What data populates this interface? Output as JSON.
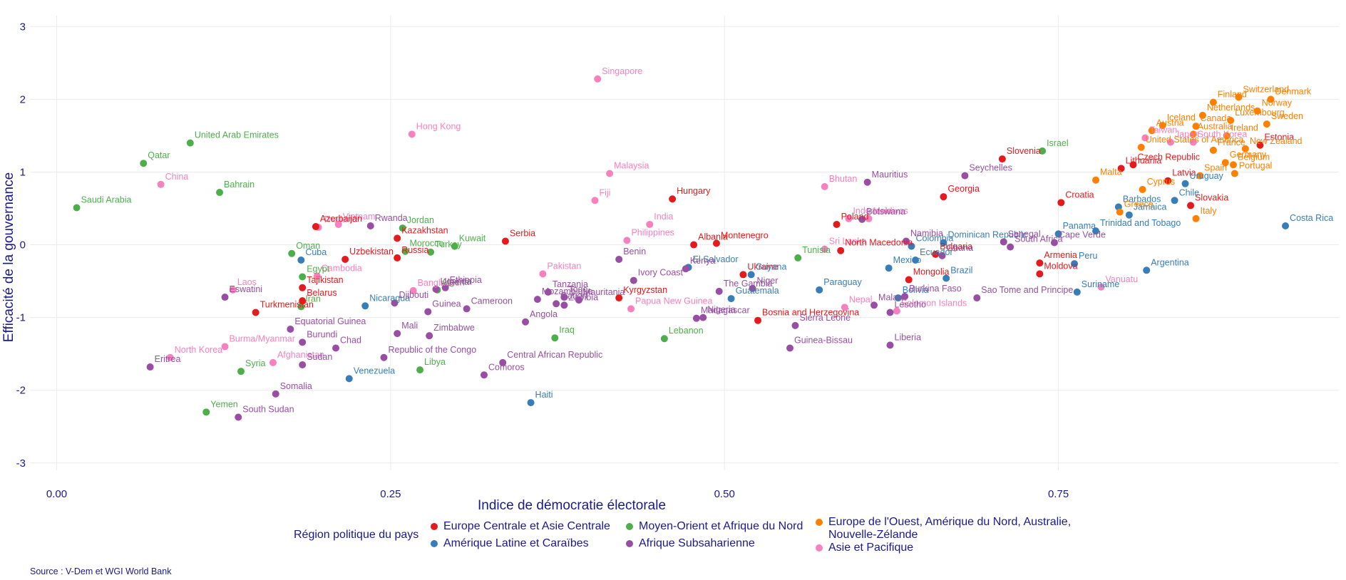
{
  "caption": "Source : V-Dem et WGI World Bank",
  "legend": {
    "title": "Région politique du pays",
    "items": [
      {
        "key": "ECA",
        "label": "Europe Centrale et Asie Centrale",
        "color": "#e41a1c"
      },
      {
        "key": "LAC",
        "label": "Amérique Latine et Caraïbes",
        "color": "#377eb8"
      },
      {
        "key": "MENA",
        "label": "Moyen-Orient et Afrique du Nord",
        "color": "#4daf4a"
      },
      {
        "key": "SSA",
        "label": "Afrique Subsaharienne",
        "color": "#984ea3"
      },
      {
        "key": "WE",
        "label": "Europe de l'Ouest, Amérique du Nord, Australie, Nouvelle-Zélande",
        "color": "#ff7f00"
      },
      {
        "key": "AP",
        "label": "Asie et Pacifique",
        "color": "#f781bf"
      }
    ]
  },
  "chart_data": {
    "type": "scatter",
    "xlabel": "Indice de démocratie électorale",
    "ylabel": "Efficacité de la gouvernance",
    "xlim": [
      -0.02,
      0.96
    ],
    "ylim": [
      -3.1,
      3.15
    ],
    "xticks": [
      "0.00",
      "0.25",
      "0.50",
      "0.75"
    ],
    "xtick_values": [
      0,
      0.25,
      0.5,
      0.75
    ],
    "yticks": [
      "-3",
      "-2",
      "-1",
      "0",
      "1",
      "2",
      "3"
    ],
    "ytick_values": [
      -3,
      -2,
      -1,
      0,
      1,
      2,
      3
    ],
    "grid": true,
    "legend_position": "bottom",
    "points": [
      {
        "name": "Singapore",
        "x": 0.405,
        "y": 2.28,
        "r": "AP"
      },
      {
        "name": "Hong Kong",
        "x": 0.266,
        "y": 1.52,
        "r": "AP"
      },
      {
        "name": "China",
        "x": 0.078,
        "y": 0.83,
        "r": "AP"
      },
      {
        "name": "Malaysia",
        "x": 0.414,
        "y": 0.98,
        "r": "AP"
      },
      {
        "name": "Fiji",
        "x": 0.403,
        "y": 0.61,
        "r": "AP"
      },
      {
        "name": "India",
        "x": 0.444,
        "y": 0.28,
        "r": "AP"
      },
      {
        "name": "Vietnam",
        "x": 0.211,
        "y": 0.28,
        "r": "AP"
      },
      {
        "name": "Thailand",
        "x": 0.196,
        "y": 0.24,
        "r": "AP"
      },
      {
        "name": "Philippines",
        "x": 0.427,
        "y": 0.06,
        "r": "AP"
      },
      {
        "name": "Cambodia",
        "x": 0.195,
        "y": -0.43,
        "r": "AP"
      },
      {
        "name": "Laos",
        "x": 0.132,
        "y": -0.62,
        "r": "AP"
      },
      {
        "name": "Pakistan",
        "x": 0.364,
        "y": -0.4,
        "r": "AP"
      },
      {
        "name": "Bangladesh",
        "x": 0.267,
        "y": -0.63,
        "r": "AP"
      },
      {
        "name": "Papua New Guinea",
        "x": 0.43,
        "y": -0.88,
        "r": "AP"
      },
      {
        "name": "Burma/Myanmar",
        "x": 0.126,
        "y": -1.4,
        "r": "AP"
      },
      {
        "name": "Afghanistan",
        "x": 0.162,
        "y": -1.62,
        "r": "AP"
      },
      {
        "name": "North Korea",
        "x": 0.085,
        "y": -1.55,
        "r": "AP"
      },
      {
        "name": "Bhutan",
        "x": 0.575,
        "y": 0.8,
        "r": "AP"
      },
      {
        "name": "Indonesia",
        "x": 0.593,
        "y": 0.36,
        "r": "AP"
      },
      {
        "name": "Maldives",
        "x": 0.608,
        "y": 0.36,
        "r": "AP"
      },
      {
        "name": "Sri Lanka",
        "x": 0.575,
        "y": -0.06,
        "r": "AP"
      },
      {
        "name": "Nepal",
        "x": 0.59,
        "y": -0.86,
        "r": "AP"
      },
      {
        "name": "Solomon Islands",
        "x": 0.629,
        "y": -0.91,
        "r": "AP"
      },
      {
        "name": "Vanuatu",
        "x": 0.782,
        "y": -0.58,
        "r": "AP"
      },
      {
        "name": "Taiwan",
        "x": 0.815,
        "y": 1.47,
        "r": "AP"
      },
      {
        "name": "Japan",
        "x": 0.834,
        "y": 1.41,
        "r": "AP"
      },
      {
        "name": "South Korea",
        "x": 0.851,
        "y": 1.41,
        "r": "AP"
      },
      {
        "name": "United Arab Emirates",
        "x": 0.1,
        "y": 1.4,
        "r": "MENA"
      },
      {
        "name": "Qatar",
        "x": 0.065,
        "y": 1.12,
        "r": "MENA"
      },
      {
        "name": "Bahrain",
        "x": 0.122,
        "y": 0.72,
        "r": "MENA"
      },
      {
        "name": "Saudi Arabia",
        "x": 0.015,
        "y": 0.51,
        "r": "MENA"
      },
      {
        "name": "Jordan",
        "x": 0.259,
        "y": 0.23,
        "r": "MENA"
      },
      {
        "name": "Kuwait",
        "x": 0.298,
        "y": -0.02,
        "r": "MENA"
      },
      {
        "name": "Oman",
        "x": 0.176,
        "y": -0.12,
        "r": "MENA"
      },
      {
        "name": "Morocco",
        "x": 0.261,
        "y": -0.09,
        "r": "MENA"
      },
      {
        "name": "Turkey",
        "x": 0.28,
        "y": -0.1,
        "r": "MENA"
      },
      {
        "name": "Egypt",
        "x": 0.184,
        "y": -0.44,
        "r": "MENA"
      },
      {
        "name": "Algeria",
        "x": 0.285,
        "y": -0.62,
        "r": "MENA"
      },
      {
        "name": "Iran",
        "x": 0.183,
        "y": -0.85,
        "r": "MENA"
      },
      {
        "name": "Iraq",
        "x": 0.373,
        "y": -1.28,
        "r": "MENA"
      },
      {
        "name": "Libya",
        "x": 0.272,
        "y": -1.72,
        "r": "MENA"
      },
      {
        "name": "Syria",
        "x": 0.138,
        "y": -1.74,
        "r": "MENA"
      },
      {
        "name": "Yemen",
        "x": 0.112,
        "y": -2.3,
        "r": "MENA"
      },
      {
        "name": "Lebanon",
        "x": 0.455,
        "y": -1.29,
        "r": "MENA"
      },
      {
        "name": "Tunisia",
        "x": 0.555,
        "y": -0.18,
        "r": "MENA"
      },
      {
        "name": "Israel",
        "x": 0.738,
        "y": 1.29,
        "r": "MENA"
      },
      {
        "name": "Azerbaijan",
        "x": 0.194,
        "y": 0.25,
        "r": "ECA"
      },
      {
        "name": "Kazakhstan",
        "x": 0.255,
        "y": 0.09,
        "r": "ECA"
      },
      {
        "name": "Uzbekistan",
        "x": 0.216,
        "y": -0.2,
        "r": "ECA"
      },
      {
        "name": "Russia",
        "x": 0.255,
        "y": -0.18,
        "r": "ECA"
      },
      {
        "name": "Serbia",
        "x": 0.336,
        "y": 0.05,
        "r": "ECA"
      },
      {
        "name": "Tajikistan",
        "x": 0.184,
        "y": -0.59,
        "r": "ECA"
      },
      {
        "name": "Belarus",
        "x": 0.184,
        "y": -0.77,
        "r": "ECA"
      },
      {
        "name": "Turkmenistan",
        "x": 0.149,
        "y": -0.93,
        "r": "ECA"
      },
      {
        "name": "Hungary",
        "x": 0.461,
        "y": 0.63,
        "r": "ECA"
      },
      {
        "name": "Albania",
        "x": 0.477,
        "y": 0.0,
        "r": "ECA"
      },
      {
        "name": "Montenegro",
        "x": 0.494,
        "y": 0.02,
        "r": "ECA"
      },
      {
        "name": "Kyrgyzstan",
        "x": 0.421,
        "y": -0.73,
        "r": "ECA"
      },
      {
        "name": "Ukraine",
        "x": 0.514,
        "y": -0.41,
        "r": "ECA"
      },
      {
        "name": "Bosnia and Herzegovina",
        "x": 0.525,
        "y": -1.04,
        "r": "ECA"
      },
      {
        "name": "Poland",
        "x": 0.584,
        "y": 0.28,
        "r": "ECA"
      },
      {
        "name": "North Macedonia",
        "x": 0.587,
        "y": -0.08,
        "r": "ECA"
      },
      {
        "name": "Georgia",
        "x": 0.664,
        "y": 0.66,
        "r": "ECA"
      },
      {
        "name": "Slovenia",
        "x": 0.708,
        "y": 1.18,
        "r": "ECA"
      },
      {
        "name": "Bulgaria",
        "x": 0.658,
        "y": -0.13,
        "r": "ECA"
      },
      {
        "name": "Mongolia",
        "x": 0.638,
        "y": -0.48,
        "r": "ECA"
      },
      {
        "name": "Armenia",
        "x": 0.736,
        "y": -0.25,
        "r": "ECA"
      },
      {
        "name": "Moldova",
        "x": 0.736,
        "y": -0.4,
        "r": "ECA"
      },
      {
        "name": "Croatia",
        "x": 0.752,
        "y": 0.58,
        "r": "ECA"
      },
      {
        "name": "Lithuania",
        "x": 0.797,
        "y": 1.05,
        "r": "ECA"
      },
      {
        "name": "Czech Republic",
        "x": 0.806,
        "y": 1.1,
        "r": "ECA"
      },
      {
        "name": "Latvia",
        "x": 0.832,
        "y": 0.88,
        "r": "ECA"
      },
      {
        "name": "Estonia",
        "x": 0.901,
        "y": 1.37,
        "r": "ECA"
      },
      {
        "name": "Slovakia",
        "x": 0.849,
        "y": 0.54,
        "r": "ECA"
      },
      {
        "name": "Cuba",
        "x": 0.183,
        "y": -0.21,
        "r": "LAC"
      },
      {
        "name": "Nicaragua",
        "x": 0.231,
        "y": -0.84,
        "r": "LAC"
      },
      {
        "name": "Venezuela",
        "x": 0.219,
        "y": -1.84,
        "r": "LAC"
      },
      {
        "name": "Haiti",
        "x": 0.355,
        "y": -2.17,
        "r": "LAC"
      },
      {
        "name": "Mauritania",
        "x": 0.391,
        "y": -0.76,
        "r": "SSA"
      },
      {
        "name": "El Salvador",
        "x": 0.473,
        "y": -0.31,
        "r": "LAC"
      },
      {
        "name": "Guyana",
        "x": 0.52,
        "y": -0.41,
        "r": "LAC"
      },
      {
        "name": "Guatemala",
        "x": 0.505,
        "y": -0.74,
        "r": "LAC"
      },
      {
        "name": "Paraguay",
        "x": 0.571,
        "y": -0.62,
        "r": "LAC"
      },
      {
        "name": "Bolivia",
        "x": 0.63,
        "y": -0.73,
        "r": "LAC"
      },
      {
        "name": "Mexico",
        "x": 0.623,
        "y": -0.32,
        "r": "LAC"
      },
      {
        "name": "Colombia",
        "x": 0.64,
        "y": -0.02,
        "r": "LAC"
      },
      {
        "name": "Ecuador",
        "x": 0.643,
        "y": -0.21,
        "r": "LAC"
      },
      {
        "name": "Brazil",
        "x": 0.666,
        "y": -0.46,
        "r": "LAC"
      },
      {
        "name": "Dominican Republic",
        "x": 0.664,
        "y": 0.03,
        "r": "LAC"
      },
      {
        "name": "Panama",
        "x": 0.75,
        "y": 0.15,
        "r": "LAC"
      },
      {
        "name": "Trinidad and Tobago",
        "x": 0.778,
        "y": 0.19,
        "r": "LAC"
      },
      {
        "name": "Peru",
        "x": 0.762,
        "y": -0.26,
        "r": "LAC"
      },
      {
        "name": "Suriname",
        "x": 0.764,
        "y": -0.65,
        "r": "LAC"
      },
      {
        "name": "Argentina",
        "x": 0.816,
        "y": -0.35,
        "r": "LAC"
      },
      {
        "name": "Barbados",
        "x": 0.795,
        "y": 0.52,
        "r": "LAC"
      },
      {
        "name": "Jamaica",
        "x": 0.803,
        "y": 0.41,
        "r": "LAC"
      },
      {
        "name": "Chile",
        "x": 0.837,
        "y": 0.61,
        "r": "LAC"
      },
      {
        "name": "Uruguay",
        "x": 0.845,
        "y": 0.84,
        "r": "LAC"
      },
      {
        "name": "Costa Rica",
        "x": 0.92,
        "y": 0.26,
        "r": "LAC"
      },
      {
        "name": "Rwanda",
        "x": 0.235,
        "y": 0.26,
        "r": "SSA"
      },
      {
        "name": "Eswatini",
        "x": 0.126,
        "y": -0.72,
        "r": "SSA"
      },
      {
        "name": "Equatorial Guinea",
        "x": 0.175,
        "y": -1.16,
        "r": "SSA"
      },
      {
        "name": "Burundi",
        "x": 0.184,
        "y": -1.34,
        "r": "SSA"
      },
      {
        "name": "Chad",
        "x": 0.209,
        "y": -1.42,
        "r": "SSA"
      },
      {
        "name": "Sudan",
        "x": 0.184,
        "y": -1.65,
        "r": "SSA"
      },
      {
        "name": "Eritrea",
        "x": 0.07,
        "y": -1.68,
        "r": "SSA"
      },
      {
        "name": "Somalia",
        "x": 0.164,
        "y": -2.05,
        "r": "SSA"
      },
      {
        "name": "South Sudan",
        "x": 0.136,
        "y": -2.37,
        "r": "SSA"
      },
      {
        "name": "Uganda",
        "x": 0.284,
        "y": -0.61,
        "r": "SSA"
      },
      {
        "name": "Ethiopia",
        "x": 0.291,
        "y": -0.59,
        "r": "SSA"
      },
      {
        "name": "Djibouti",
        "x": 0.253,
        "y": -0.8,
        "r": "SSA"
      },
      {
        "name": "Guinea",
        "x": 0.278,
        "y": -0.92,
        "r": "SSA"
      },
      {
        "name": "Cameroon",
        "x": 0.307,
        "y": -0.88,
        "r": "SSA"
      },
      {
        "name": "Mali",
        "x": 0.255,
        "y": -1.22,
        "r": "SSA"
      },
      {
        "name": "Zimbabwe",
        "x": 0.279,
        "y": -1.25,
        "r": "SSA"
      },
      {
        "name": "Republic of the Congo",
        "x": 0.245,
        "y": -1.55,
        "r": "SSA"
      },
      {
        "name": "Mozambique",
        "x": 0.36,
        "y": -0.75,
        "r": "SSA"
      },
      {
        "name": "Tanzania",
        "x": 0.368,
        "y": -0.65,
        "r": "SSA"
      },
      {
        "name": "Togo",
        "x": 0.38,
        "y": -0.72,
        "r": "SSA"
      },
      {
        "name": "Gabon",
        "x": 0.374,
        "y": -0.81,
        "r": "SSA"
      },
      {
        "name": "Zambia",
        "x": 0.38,
        "y": -0.83,
        "r": "SSA"
      },
      {
        "name": "Angola",
        "x": 0.351,
        "y": -1.06,
        "r": "SSA"
      },
      {
        "name": "Central African Republic",
        "x": 0.334,
        "y": -1.62,
        "r": "SSA"
      },
      {
        "name": "Comoros",
        "x": 0.32,
        "y": -1.79,
        "r": "SSA"
      },
      {
        "name": "Benin",
        "x": 0.421,
        "y": -0.2,
        "r": "SSA"
      },
      {
        "name": "Ivory Coast",
        "x": 0.432,
        "y": -0.49,
        "r": "SSA"
      },
      {
        "name": "Kenya",
        "x": 0.471,
        "y": -0.33,
        "r": "SSA"
      },
      {
        "name": "The Gambia",
        "x": 0.496,
        "y": -0.64,
        "r": "SSA"
      },
      {
        "name": "Nigeria",
        "x": 0.484,
        "y": -1.0,
        "r": "SSA"
      },
      {
        "name": "Madagascar",
        "x": 0.479,
        "y": -1.01,
        "r": "SSA"
      },
      {
        "name": "Niger",
        "x": 0.521,
        "y": -0.6,
        "r": "SSA"
      },
      {
        "name": "Sierra Leone",
        "x": 0.553,
        "y": -1.11,
        "r": "SSA"
      },
      {
        "name": "Guinea-Bissau",
        "x": 0.549,
        "y": -1.42,
        "r": "SSA"
      },
      {
        "name": "Mauritius",
        "x": 0.607,
        "y": 0.86,
        "r": "SSA"
      },
      {
        "name": "Botswana",
        "x": 0.603,
        "y": 0.35,
        "r": "SSA"
      },
      {
        "name": "Namibia",
        "x": 0.636,
        "y": 0.05,
        "r": "SSA"
      },
      {
        "name": "Malawi",
        "x": 0.612,
        "y": -0.83,
        "r": "SSA"
      },
      {
        "name": "Lesotho",
        "x": 0.624,
        "y": -0.93,
        "r": "SSA"
      },
      {
        "name": "Burkina Faso",
        "x": 0.635,
        "y": -0.71,
        "r": "SSA"
      },
      {
        "name": "Liberia",
        "x": 0.624,
        "y": -1.38,
        "r": "SSA"
      },
      {
        "name": "Seychelles",
        "x": 0.68,
        "y": 0.95,
        "r": "SSA"
      },
      {
        "name": "Ghana",
        "x": 0.663,
        "y": -0.15,
        "r": "SSA"
      },
      {
        "name": "South Africa",
        "x": 0.714,
        "y": -0.03,
        "r": "SSA"
      },
      {
        "name": "Senegal",
        "x": 0.709,
        "y": 0.04,
        "r": "SSA"
      },
      {
        "name": "Cape Verde",
        "x": 0.747,
        "y": 0.03,
        "r": "SSA"
      },
      {
        "name": "Sao Tome and Principe",
        "x": 0.689,
        "y": -0.73,
        "r": "SSA"
      },
      {
        "name": "Finland",
        "x": 0.866,
        "y": 1.96,
        "r": "WE"
      },
      {
        "name": "Switzerland",
        "x": 0.885,
        "y": 2.03,
        "r": "WE"
      },
      {
        "name": "Denmark",
        "x": 0.909,
        "y": 2.0,
        "r": "WE"
      },
      {
        "name": "Netherlands",
        "x": 0.858,
        "y": 1.78,
        "r": "WE"
      },
      {
        "name": "Norway",
        "x": 0.899,
        "y": 1.84,
        "r": "WE"
      },
      {
        "name": "Luxembourg",
        "x": 0.879,
        "y": 1.71,
        "r": "WE"
      },
      {
        "name": "Iceland",
        "x": 0.828,
        "y": 1.64,
        "r": "WE"
      },
      {
        "name": "Canada",
        "x": 0.853,
        "y": 1.63,
        "r": "WE"
      },
      {
        "name": "Sweden",
        "x": 0.906,
        "y": 1.66,
        "r": "WE"
      },
      {
        "name": "Austria",
        "x": 0.82,
        "y": 1.57,
        "r": "WE"
      },
      {
        "name": "Australia",
        "x": 0.851,
        "y": 1.52,
        "r": "WE"
      },
      {
        "name": "Ireland",
        "x": 0.876,
        "y": 1.5,
        "r": "WE"
      },
      {
        "name": "United States of America",
        "x": 0.812,
        "y": 1.34,
        "r": "WE"
      },
      {
        "name": "France",
        "x": 0.866,
        "y": 1.3,
        "r": "WE"
      },
      {
        "name": "New Zealand",
        "x": 0.89,
        "y": 1.32,
        "r": "WE"
      },
      {
        "name": "Germany",
        "x": 0.875,
        "y": 1.13,
        "r": "WE"
      },
      {
        "name": "Belgium",
        "x": 0.881,
        "y": 1.1,
        "r": "WE"
      },
      {
        "name": "Malta",
        "x": 0.778,
        "y": 0.89,
        "r": "WE"
      },
      {
        "name": "Cyprus",
        "x": 0.813,
        "y": 0.76,
        "r": "WE"
      },
      {
        "name": "Spain",
        "x": 0.856,
        "y": 0.95,
        "r": "WE"
      },
      {
        "name": "Portugal",
        "x": 0.882,
        "y": 0.98,
        "r": "WE"
      },
      {
        "name": "Greece",
        "x": 0.796,
        "y": 0.45,
        "r": "WE"
      },
      {
        "name": "Italy",
        "x": 0.853,
        "y": 0.36,
        "r": "WE"
      }
    ]
  }
}
